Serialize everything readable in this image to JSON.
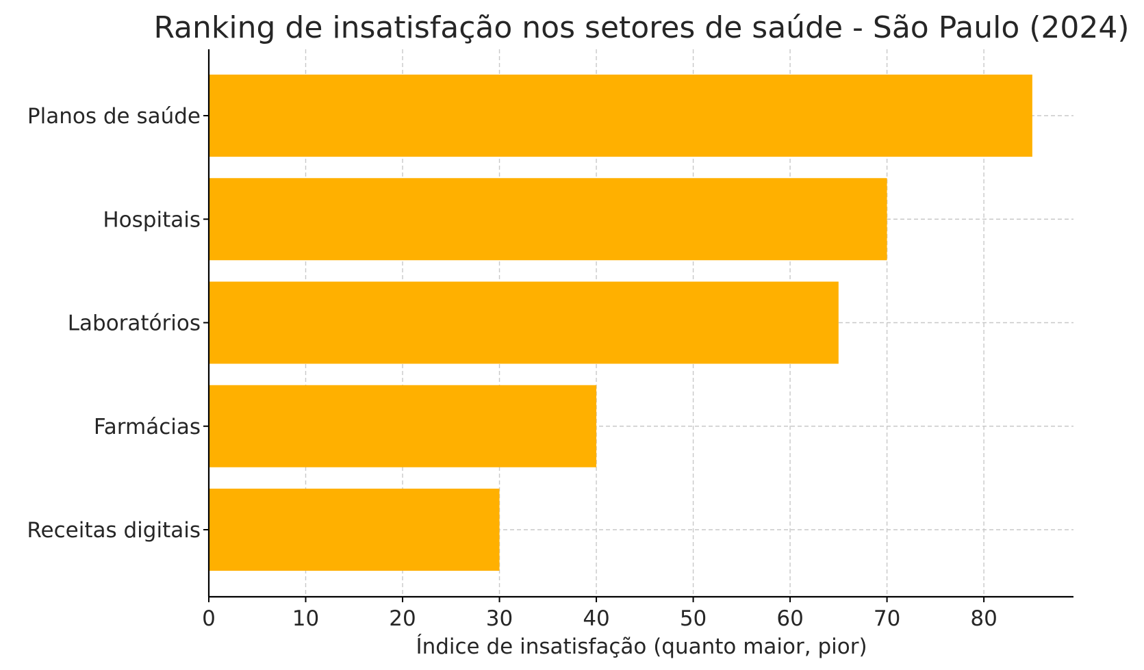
{
  "chart_data": {
    "type": "bar",
    "orientation": "horizontal",
    "title": "Ranking de insatisfação nos setores de saúde - São Paulo (2024)",
    "xlabel": "Índice de insatisfação (quanto maior, pior)",
    "ylabel": "",
    "categories": [
      "Planos de saúde",
      "Hospitais",
      "Laboratórios",
      "Farmácias",
      "Receitas digitais"
    ],
    "values": [
      85,
      70,
      65,
      40,
      30
    ],
    "xlim": [
      0,
      89.25
    ],
    "xticks": [
      "0",
      "10",
      "20",
      "30",
      "40",
      "50",
      "60",
      "70",
      "80"
    ],
    "grid": true,
    "bar_color": "#FFB000"
  }
}
